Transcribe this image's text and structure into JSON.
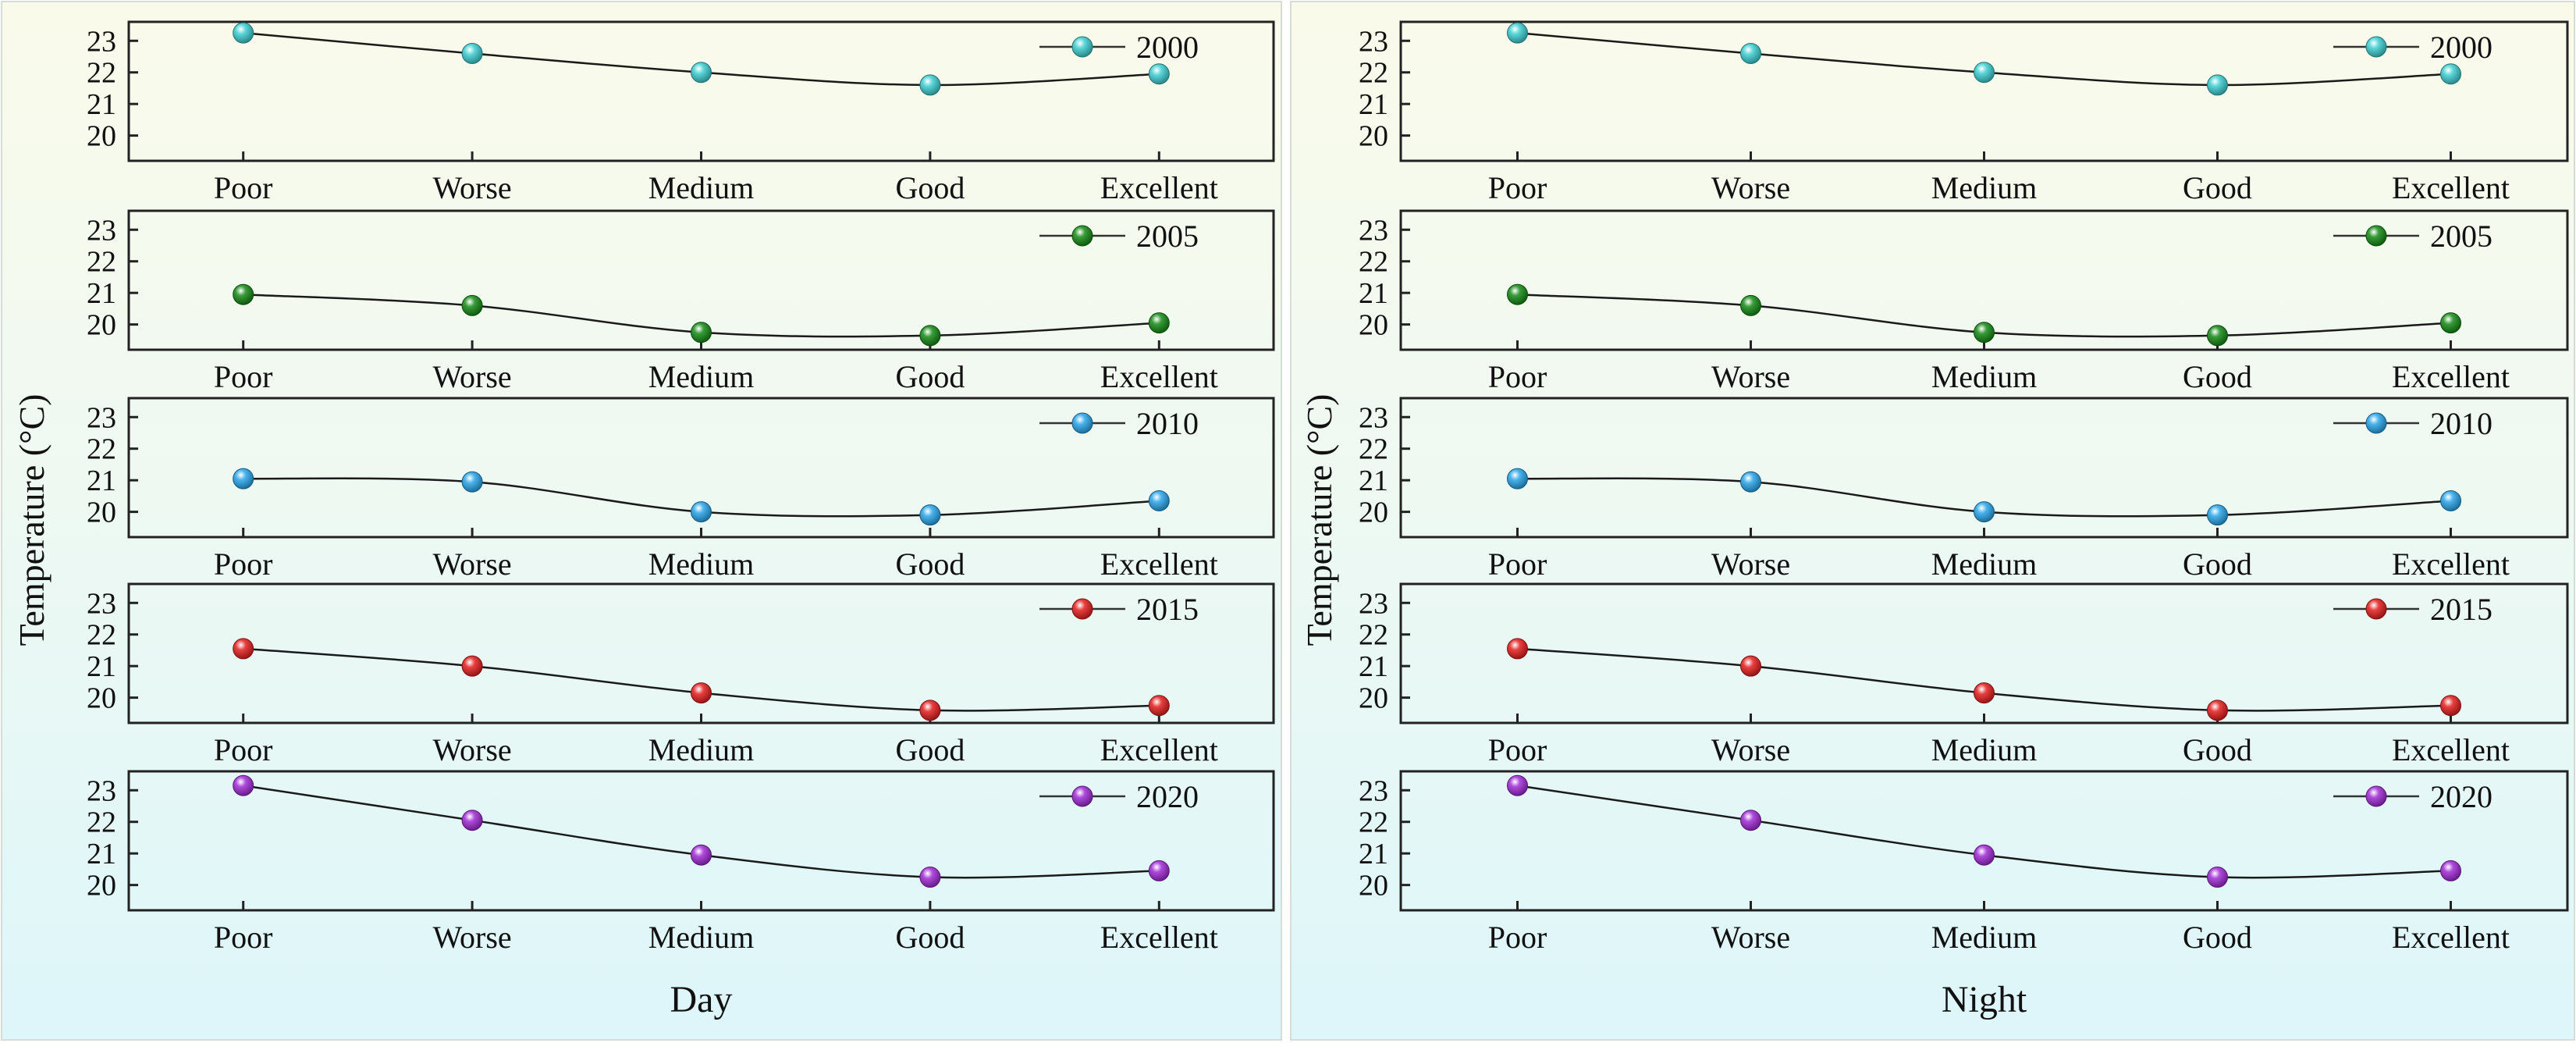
{
  "figure": {
    "y_axis_title": "Temperature (°C)"
  },
  "chart_data": [
    {
      "type": "line",
      "panel": "Day",
      "xlabel": "Day",
      "ylabel": "Temperature (°C)",
      "categories": [
        "Poor",
        "Worse",
        "Medium",
        "Good",
        "Excellent"
      ],
      "yticks": [
        20,
        21,
        22,
        23
      ],
      "ylim": [
        19.2,
        23.6
      ],
      "series": [
        {
          "name": "2000",
          "color": "#3ECFD2",
          "values": [
            23.25,
            22.6,
            22.0,
            21.6,
            21.95
          ]
        },
        {
          "name": "2005",
          "color": "#168A16",
          "values": [
            20.95,
            20.6,
            19.75,
            19.65,
            20.05
          ]
        },
        {
          "name": "2010",
          "color": "#2AA6EA",
          "values": [
            21.05,
            20.95,
            20.0,
            19.9,
            20.35
          ]
        },
        {
          "name": "2015",
          "color": "#E51E1E",
          "values": [
            21.55,
            21.0,
            20.15,
            19.6,
            19.75
          ]
        },
        {
          "name": "2020",
          "color": "#A12BD6",
          "values": [
            23.15,
            22.05,
            20.95,
            20.25,
            20.45
          ]
        }
      ]
    },
    {
      "type": "line",
      "panel": "Night",
      "xlabel": "Night",
      "ylabel": "Temperature (°C)",
      "categories": [
        "Poor",
        "Worse",
        "Medium",
        "Good",
        "Excellent"
      ],
      "yticks": [
        20,
        21,
        22,
        23
      ],
      "ylim": [
        19.2,
        23.6
      ],
      "series": [
        {
          "name": "2000",
          "color": "#3ECFD2",
          "values": [
            23.25,
            22.6,
            22.0,
            21.6,
            21.95
          ]
        },
        {
          "name": "2005",
          "color": "#168A16",
          "values": [
            20.95,
            20.6,
            19.75,
            19.65,
            20.05
          ]
        },
        {
          "name": "2010",
          "color": "#2AA6EA",
          "values": [
            21.05,
            20.95,
            20.0,
            19.9,
            20.35
          ]
        },
        {
          "name": "2015",
          "color": "#E51E1E",
          "values": [
            21.55,
            21.0,
            20.15,
            19.6,
            19.75
          ]
        },
        {
          "name": "2020",
          "color": "#A12BD6",
          "values": [
            23.15,
            22.05,
            20.95,
            20.25,
            20.45
          ]
        }
      ]
    }
  ]
}
